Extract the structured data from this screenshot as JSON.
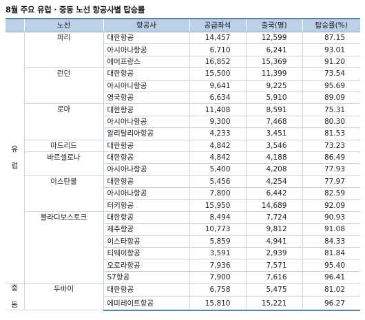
{
  "title": "8월 주요 유럽 · 중동 노선 항공사별 탑승률",
  "headers": [
    "노선",
    "항공사",
    "공급좌석",
    "출국(명)",
    "탑승률(%)"
  ],
  "regions": [
    {
      "chars": [
        "유",
        "럽"
      ],
      "routes": [
        {
          "name": "파리",
          "rows": [
            {
              "airline": "대한항공",
              "seats": "14,457",
              "departures": "12,599",
              "rate": "87.15"
            },
            {
              "airline": "아시아나항공",
              "seats": "6,710",
              "departures": "6,241",
              "rate": "93.01"
            },
            {
              "airline": "에어프랑스",
              "seats": "16,852",
              "departures": "15,369",
              "rate": "91.20"
            }
          ]
        },
        {
          "name": "런던",
          "rows": [
            {
              "airline": "대한항공",
              "seats": "15,500",
              "departures": "11,399",
              "rate": "73.54"
            },
            {
              "airline": "아시아나항공",
              "seats": "9,641",
              "departures": "9,225",
              "rate": "95.69"
            },
            {
              "airline": "영국항공",
              "seats": "6,634",
              "departures": "5,910",
              "rate": "89.09"
            }
          ]
        },
        {
          "name": "로마",
          "rows": [
            {
              "airline": "대한항공",
              "seats": "11,408",
              "departures": "8,591",
              "rate": "75.31"
            },
            {
              "airline": "아시아나항공",
              "seats": "9,300",
              "departures": "7,468",
              "rate": "80.30"
            },
            {
              "airline": "알리탈리아항공",
              "seats": "4,233",
              "departures": "3,451",
              "rate": "81.53"
            }
          ]
        },
        {
          "name": "마드리드",
          "rows": [
            {
              "airline": "대한항공",
              "seats": "4,842",
              "departures": "3,546",
              "rate": "73.23"
            }
          ]
        },
        {
          "name": "바르셀로나",
          "rows": [
            {
              "airline": "대한항공",
              "seats": "4,842",
              "departures": "4,188",
              "rate": "86.49"
            },
            {
              "airline": "아시아나항공",
              "seats": "5,400",
              "departures": "4,208",
              "rate": "77.93"
            }
          ]
        },
        {
          "name": "이스탄불",
          "rows": [
            {
              "airline": "대한항공",
              "seats": "5,456",
              "departures": "4,254",
              "rate": "77.97"
            },
            {
              "airline": "아시아나항공",
              "seats": "7,800",
              "departures": "6,442",
              "rate": "82.59"
            },
            {
              "airline": "터키항공",
              "seats": "15,950",
              "departures": "14,689",
              "rate": "92.09"
            }
          ]
        },
        {
          "name": "블라디보스토크",
          "rows": [
            {
              "airline": "대한항공",
              "seats": "8,494",
              "departures": "7,724",
              "rate": "90.93"
            },
            {
              "airline": "제주항공",
              "seats": "10,773",
              "departures": "9,812",
              "rate": "91.08"
            },
            {
              "airline": "이스타항공",
              "seats": "5,859",
              "departures": "4,941",
              "rate": "84.33"
            },
            {
              "airline": "티웨이항공",
              "seats": "3,591",
              "departures": "2,939",
              "rate": "81.84"
            },
            {
              "airline": "오로라항공",
              "seats": "7,936",
              "departures": "7,571",
              "rate": "95.40"
            },
            {
              "airline": "S7항공",
              "seats": "7,900",
              "departures": "7,616",
              "rate": "96.41"
            }
          ]
        }
      ]
    },
    {
      "chars": [
        "중",
        "동"
      ],
      "routes": [
        {
          "name": "두바이",
          "rows": [
            {
              "airline": "대한항공",
              "seats": "6,758",
              "departures": "5,475",
              "rate": "81.02"
            },
            {
              "airline": "에미레이트항공",
              "seats": "15,810",
              "departures": "15,221",
              "rate": "96.27"
            }
          ]
        }
      ]
    }
  ]
}
